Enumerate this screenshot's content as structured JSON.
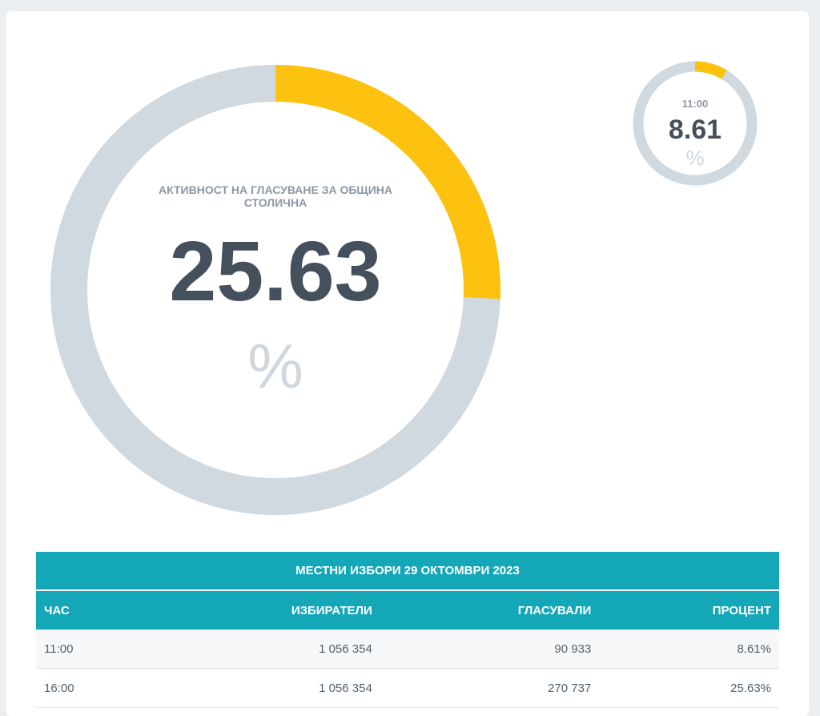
{
  "main_gauge": {
    "label": "АКТИВНОСТ НА ГЛАСУВАНЕ ЗА ОБЩИНА СТОЛИЧНА",
    "value": "25.63",
    "unit": "%",
    "fraction": 0.2563
  },
  "small_gauge": {
    "time": "11:00",
    "value": "8.61",
    "unit": "%",
    "fraction": 0.0861
  },
  "colors": {
    "accent": "#fdc20f",
    "track": "#d0d9df",
    "header": "#14a7b8"
  },
  "table": {
    "caption": "МЕСТНИ ИЗБОРИ 29 ОКТОМВРИ 2023",
    "headers": [
      "ЧАС",
      "ИЗБИРАТЕЛИ",
      "ГЛАСУВАЛИ",
      "ПРОЦЕНТ"
    ],
    "rows": [
      [
        "11:00",
        "1 056 354",
        "90 933",
        "8.61%"
      ],
      [
        "16:00",
        "1 056 354",
        "270 737",
        "25.63%"
      ]
    ]
  },
  "chart_data": {
    "type": "table",
    "title": "МЕСТНИ ИЗБОРИ 29 ОКТОМВРИ 2023",
    "columns": [
      "ЧАС",
      "ИЗБИРАТЕЛИ",
      "ГЛАСУВАЛИ",
      "ПРОЦЕНТ"
    ],
    "categories": [
      "11:00",
      "16:00"
    ],
    "series": [
      {
        "name": "ИЗБИРАТЕЛИ",
        "values": [
          1056354,
          1056354
        ]
      },
      {
        "name": "ГЛАСУВАЛИ",
        "values": [
          90933,
          270737
        ]
      },
      {
        "name": "ПРОЦЕНТ",
        "values": [
          8.61,
          25.63
        ]
      }
    ]
  }
}
